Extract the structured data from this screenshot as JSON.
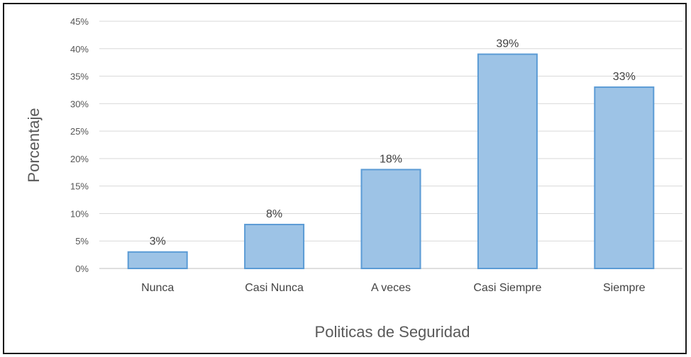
{
  "chart_data": {
    "type": "bar",
    "title": "",
    "xlabel": "Politicas de Seguridad",
    "ylabel": "Porcentaje",
    "categories": [
      "Nunca",
      "Casi Nunca",
      "A veces",
      "Casi Siempre",
      "Siempre"
    ],
    "values": [
      3,
      8,
      18,
      39,
      33
    ],
    "data_labels": [
      "3%",
      "8%",
      "18%",
      "39%",
      "33%"
    ],
    "ylim": [
      0,
      45
    ],
    "yticks": [
      0,
      5,
      10,
      15,
      20,
      25,
      30,
      35,
      40,
      45
    ],
    "ytick_labels": [
      "0%",
      "5%",
      "10%",
      "15%",
      "20%",
      "25%",
      "30%",
      "35%",
      "40%",
      "45%"
    ],
    "grid": true,
    "legend": "none",
    "colors": {
      "bar_fill": "#9dc3e6",
      "bar_stroke": "#5b9bd5",
      "grid": "#d9d9d9",
      "axis": "#bfbfbf"
    }
  }
}
